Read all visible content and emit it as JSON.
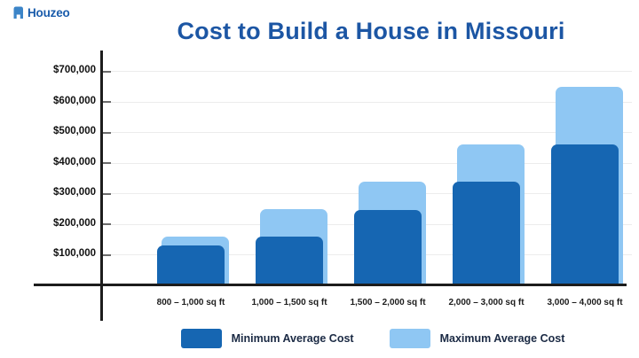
{
  "logo": {
    "brand_text": "Houzeo",
    "icon": "houzeo-building-icon",
    "icon_color": "#3c85c8",
    "text_color": "#1a5cab"
  },
  "title": "Cost to Build a House in Missouri",
  "title_color": "#1c56a4",
  "chart_data": {
    "type": "bar",
    "title": "Cost to Build a House in Missouri",
    "categories": [
      "800 – 1,000 sq ft",
      "1,000 – 1,500 sq ft",
      "1,500 – 2,000 sq ft",
      "2,000 – 3,000 sq ft",
      "3,000 – 4,000 sq ft"
    ],
    "series": [
      {
        "name": "Minimum Average Cost",
        "color": "#1666b2",
        "values": [
          130000,
          160000,
          245000,
          340000,
          460000
        ]
      },
      {
        "name": "Maximum Average Cost",
        "color": "#8fc7f3",
        "values": [
          160000,
          250000,
          340000,
          460000,
          650000
        ]
      }
    ],
    "xlabel": "",
    "ylabel": "",
    "ylim": [
      0,
      700000
    ],
    "y_tick_values": [
      100000,
      200000,
      300000,
      400000,
      500000,
      600000,
      700000
    ],
    "y_tick_labels": [
      "$100,000",
      "$200,000",
      "$300,000",
      "$400,000",
      "$500,000",
      "$600,000",
      "$700,000"
    ],
    "grid": "horizontal",
    "gridline_color": "#ececec",
    "axis_color": "#1d1d1d",
    "bar_style": "overlapped, rounded top corners, max bar behind and offset right",
    "legend_position": "bottom"
  }
}
